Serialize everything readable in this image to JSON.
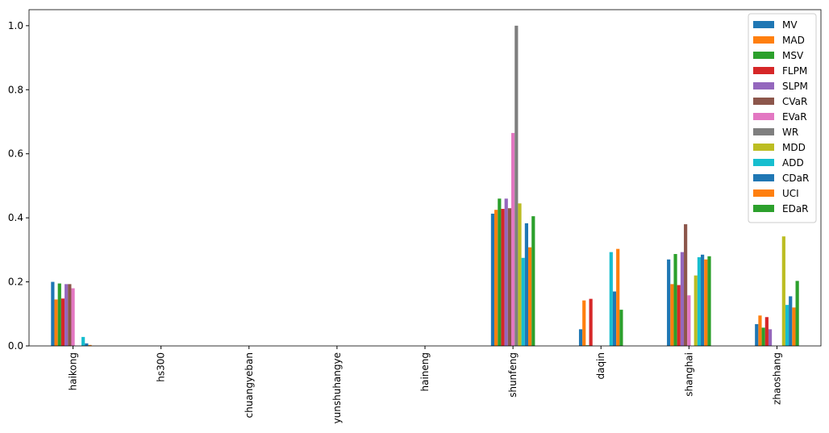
{
  "chart_data": {
    "type": "bar",
    "categories": [
      "haikong",
      "hs300",
      "chuangyeban",
      "yunshuhangye",
      "haineng",
      "shunfeng",
      "daqin",
      "shanghai",
      "zhaoshang"
    ],
    "series": [
      {
        "name": "MV",
        "color": "#1f77b4",
        "values": [
          0.2,
          0,
          0,
          0,
          0,
          0.413,
          0.052,
          0.27,
          0.068
        ]
      },
      {
        "name": "MAD",
        "color": "#ff7f0e",
        "values": [
          0.145,
          0,
          0,
          0,
          0,
          0.425,
          0.142,
          0.193,
          0.095
        ]
      },
      {
        "name": "MSV",
        "color": "#2ca02c",
        "values": [
          0.195,
          0,
          0,
          0,
          0,
          0.46,
          0.002,
          0.287,
          0.057
        ]
      },
      {
        "name": "FLPM",
        "color": "#d62728",
        "values": [
          0.148,
          0,
          0,
          0,
          0,
          0.428,
          0.147,
          0.19,
          0.09
        ]
      },
      {
        "name": "SLPM",
        "color": "#9467bd",
        "values": [
          0.193,
          0,
          0,
          0,
          0,
          0.46,
          0,
          0.293,
          0.052
        ]
      },
      {
        "name": "CVaR",
        "color": "#8c564b",
        "values": [
          0.193,
          0,
          0,
          0,
          0,
          0.43,
          0,
          0.38,
          0
        ]
      },
      {
        "name": "EVaR",
        "color": "#e377c2",
        "values": [
          0.18,
          0,
          0,
          0,
          0,
          0.665,
          0,
          0.158,
          0
        ]
      },
      {
        "name": "WR",
        "color": "#7f7f7f",
        "values": [
          0,
          0,
          0,
          0,
          0,
          1.0,
          0,
          0,
          0
        ]
      },
      {
        "name": "MDD",
        "color": "#bcbd22",
        "values": [
          0,
          0,
          0,
          0,
          0,
          0.445,
          0,
          0.22,
          0.342
        ]
      },
      {
        "name": "ADD",
        "color": "#17becf",
        "values": [
          0.028,
          0,
          0,
          0,
          0,
          0.275,
          0.293,
          0.277,
          0.128
        ]
      },
      {
        "name": "CDaR",
        "color": "#1f77b4",
        "values": [
          0.008,
          0,
          0,
          0,
          0,
          0.383,
          0.17,
          0.285,
          0.155
        ]
      },
      {
        "name": "UCI",
        "color": "#ff7f0e",
        "values": [
          0.003,
          0,
          0,
          0,
          0,
          0.308,
          0.303,
          0.27,
          0.12
        ]
      },
      {
        "name": "EDaR",
        "color": "#2ca02c",
        "values": [
          0,
          0,
          0,
          0,
          0,
          0.405,
          0.113,
          0.28,
          0.203
        ]
      }
    ],
    "ylim": [
      0,
      1.05
    ],
    "yticks": [
      {
        "value": 0,
        "label": "0.0"
      },
      {
        "value": 0.2,
        "label": "0.2"
      },
      {
        "value": 0.4,
        "label": "0.4"
      },
      {
        "value": 0.6,
        "label": "0.6"
      },
      {
        "value": 0.8,
        "label": "0.8"
      },
      {
        "value": 1.0,
        "label": "1.0"
      }
    ],
    "legend": "upper right"
  }
}
